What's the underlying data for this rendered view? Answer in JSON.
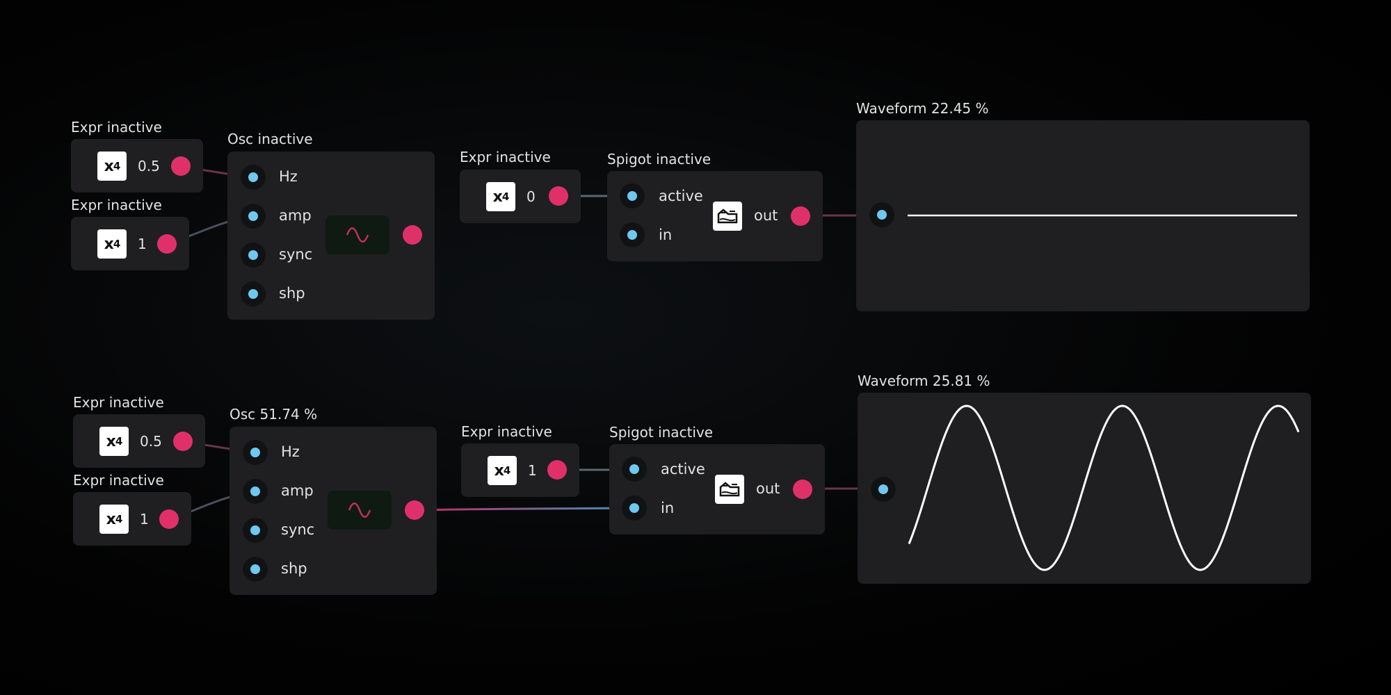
{
  "patch1": {
    "expr_a": {
      "title": "Expr inactive",
      "value": "0.5",
      "icon": "expr-icon"
    },
    "expr_b": {
      "title": "Expr inactive",
      "value": "1",
      "icon": "expr-icon"
    },
    "osc": {
      "title": "Osc inactive",
      "ports": [
        "Hz",
        "amp",
        "sync",
        "shp"
      ],
      "icon": "sine-icon"
    },
    "expr_c": {
      "title": "Expr inactive",
      "value": "0",
      "icon": "expr-icon"
    },
    "spigot": {
      "title": "Spigot inactive",
      "ports": [
        "active",
        "in"
      ],
      "out_label": "out",
      "icon": "spigot-icon"
    },
    "waveform": {
      "title": "Waveform 22.45 %",
      "signal": "flat"
    }
  },
  "patch2": {
    "expr_a": {
      "title": "Expr inactive",
      "value": "0.5",
      "icon": "expr-icon"
    },
    "expr_b": {
      "title": "Expr inactive",
      "value": "1",
      "icon": "expr-icon"
    },
    "osc": {
      "title": "Osc 51.74 %",
      "ports": [
        "Hz",
        "amp",
        "sync",
        "shp"
      ],
      "icon": "sine-icon"
    },
    "expr_c": {
      "title": "Expr inactive",
      "value": "1",
      "icon": "expr-icon"
    },
    "spigot": {
      "title": "Spigot inactive",
      "ports": [
        "active",
        "in"
      ],
      "out_label": "out",
      "icon": "spigot-icon"
    },
    "waveform": {
      "title": "Waveform 25.81 %",
      "signal": "sine",
      "cycles": 2.5
    }
  },
  "colors": {
    "outlet": "#e0306a",
    "inlet": "#6ec8ef",
    "node_bg": "#1f1f21",
    "osc_active_bg": "#0f1a12",
    "wave_line": "#ffffff"
  }
}
